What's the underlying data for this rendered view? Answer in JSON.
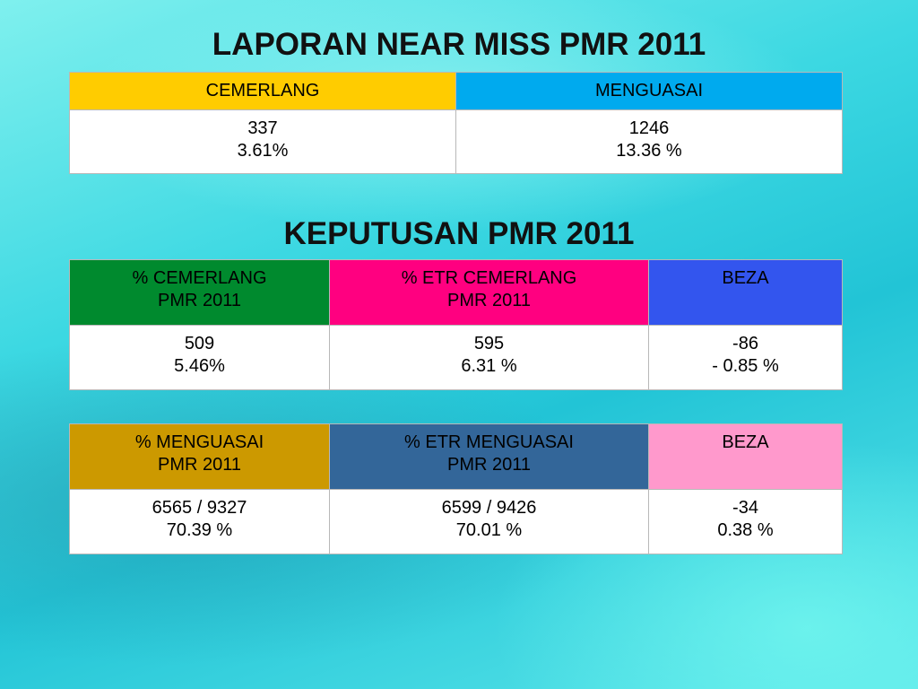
{
  "title": "LAPORAN NEAR MISS PMR 2011",
  "table_1": {
    "headers": [
      [
        "CEMERLANG"
      ],
      [
        "MENGUASAI"
      ]
    ],
    "rows": [
      [
        [
          "337",
          "3.61%"
        ],
        [
          "1246",
          "13.36 %"
        ]
      ]
    ]
  },
  "subtitle": "KEPUTUSAN PMR 2011",
  "table_2": {
    "headers": [
      [
        "% CEMERLANG",
        "PMR 2011"
      ],
      [
        "% ETR CEMERLANG",
        "PMR 2011"
      ],
      [
        "BEZA"
      ]
    ],
    "rows": [
      [
        [
          "509",
          "5.46%"
        ],
        [
          "595",
          "6.31 %"
        ],
        [
          "-86",
          "- 0.85 %"
        ]
      ]
    ]
  },
  "table_3": {
    "headers": [
      [
        "% MENGUASAI",
        "PMR 2011"
      ],
      [
        "% ETR MENGUASAI",
        "PMR 2011"
      ],
      [
        "BEZA"
      ]
    ],
    "rows": [
      [
        [
          "6565 / 9327",
          "70.39 %"
        ],
        [
          "6599 / 9426",
          "70.01 %"
        ],
        [
          "-34",
          "0.38 %"
        ]
      ]
    ]
  }
}
